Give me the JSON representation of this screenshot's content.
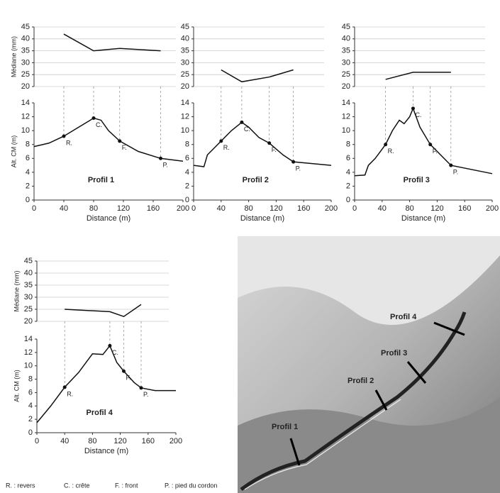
{
  "chart_data": [
    {
      "type": "line",
      "ylabel": "Médiane (mm)",
      "xlim": [
        0,
        200
      ],
      "ylim": [
        20,
        45
      ],
      "yticks": [
        20,
        25,
        30,
        35,
        40,
        45
      ],
      "grid": true,
      "color": "#111",
      "x": [
        40,
        80,
        115,
        170
      ],
      "values": [
        42,
        35,
        36,
        35
      ]
    },
    {
      "type": "line",
      "title": "Profil 1",
      "ylabel": "Alt. CM (m)",
      "xlabel": "Distance (m)",
      "xlim": [
        0,
        200
      ],
      "xticks": [
        0,
        40,
        80,
        120,
        160,
        200
      ],
      "ylim": [
        0,
        14
      ],
      "yticks": [
        0,
        2,
        4,
        6,
        8,
        10,
        12,
        14
      ],
      "color": "#111",
      "x": [
        0,
        20,
        40,
        60,
        80,
        90,
        100,
        115,
        140,
        170,
        200
      ],
      "values": [
        7.7,
        8.2,
        9.2,
        10.5,
        11.8,
        11.5,
        10,
        8.5,
        7,
        6,
        5.6
      ],
      "points": {
        "labels": [
          "R.",
          "C.",
          "F.",
          "P."
        ],
        "x": [
          40,
          80,
          115,
          170
        ],
        "values": [
          9.2,
          11.8,
          8.5,
          6
        ]
      }
    },
    {
      "type": "line",
      "xlim": [
        0,
        200
      ],
      "ylim": [
        20,
        45
      ],
      "yticks": [
        20,
        25,
        30,
        35,
        40,
        45
      ],
      "grid": true,
      "color": "#111",
      "x": [
        40,
        70,
        110,
        145
      ],
      "values": [
        27,
        22,
        24,
        27
      ]
    },
    {
      "type": "line",
      "title": "Profil 2",
      "xlabel": "Distance (m)",
      "xlim": [
        0,
        200
      ],
      "xticks": [
        0,
        40,
        80,
        120,
        160,
        200
      ],
      "ylim": [
        0,
        14
      ],
      "yticks": [
        0,
        2,
        4,
        6,
        8,
        10,
        12,
        14
      ],
      "color": "#111",
      "x": [
        0,
        15,
        20,
        30,
        40,
        55,
        70,
        80,
        95,
        110,
        130,
        145,
        200
      ],
      "values": [
        5,
        4.8,
        6.5,
        7.5,
        8.5,
        10,
        11.2,
        10.5,
        9,
        8.2,
        6.5,
        5.5,
        5
      ],
      "points": {
        "labels": [
          "R.",
          "C.",
          "F.",
          "P."
        ],
        "x": [
          40,
          70,
          110,
          145
        ],
        "values": [
          8.5,
          11.2,
          8.2,
          5.5
        ]
      }
    },
    {
      "type": "line",
      "xlim": [
        0,
        200
      ],
      "ylim": [
        20,
        45
      ],
      "yticks": [
        20,
        25,
        30,
        35,
        40,
        45
      ],
      "grid": true,
      "color": "#111",
      "x": [
        45,
        85,
        110,
        140
      ],
      "values": [
        23,
        26,
        26,
        26
      ]
    },
    {
      "type": "line",
      "title": "Profil 3",
      "xlabel": "Distance (m)",
      "xlim": [
        0,
        200
      ],
      "xticks": [
        0,
        40,
        80,
        120,
        160,
        200
      ],
      "ylim": [
        0,
        14
      ],
      "yticks": [
        0,
        2,
        4,
        6,
        8,
        10,
        12,
        14
      ],
      "color": "#111",
      "x": [
        0,
        15,
        20,
        30,
        45,
        55,
        65,
        72,
        80,
        85,
        95,
        110,
        140,
        200
      ],
      "values": [
        3.5,
        3.6,
        5,
        6,
        8,
        10,
        11.5,
        11,
        12,
        13.2,
        10.5,
        8,
        5,
        3.8
      ],
      "points": {
        "labels": [
          "R.",
          "C.",
          "F.",
          "P."
        ],
        "x": [
          45,
          85,
          110,
          140
        ],
        "values": [
          8,
          13.2,
          8,
          5
        ]
      }
    },
    {
      "type": "line",
      "ylabel": "Médiane (mm)",
      "xlim": [
        0,
        200
      ],
      "ylim": [
        20,
        45
      ],
      "yticks": [
        20,
        25,
        30,
        35,
        40,
        45
      ],
      "grid": true,
      "color": "#111",
      "x": [
        40,
        105,
        125,
        150
      ],
      "values": [
        25,
        24,
        22,
        27
      ]
    },
    {
      "type": "line",
      "title": "Profil 4",
      "ylabel": "Alt. CM (m)",
      "xlabel": "Distance (m)",
      "xlim": [
        0,
        200
      ],
      "xticks": [
        0,
        40,
        80,
        120,
        160,
        200
      ],
      "ylim": [
        0,
        14
      ],
      "yticks": [
        0,
        2,
        4,
        6,
        8,
        10,
        12,
        14
      ],
      "color": "#111",
      "x": [
        0,
        20,
        40,
        60,
        80,
        95,
        105,
        115,
        125,
        140,
        150,
        170,
        200
      ],
      "values": [
        1.5,
        4,
        6.8,
        9,
        11.8,
        11.7,
        13,
        10.5,
        9.2,
        7.5,
        6.7,
        6.3,
        6.3
      ],
      "points": {
        "labels": [
          "R.",
          "C.",
          "F.",
          "P."
        ],
        "x": [
          40,
          105,
          125,
          150
        ],
        "values": [
          6.8,
          13,
          9.2,
          6.7
        ]
      }
    }
  ],
  "map": {
    "labels": [
      "Profil 1",
      "Profil 2",
      "Profil 3",
      "Profil 4"
    ]
  },
  "legend": [
    "R. : revers",
    "C. : crête",
    "F. : front",
    "P. : pied du cordon"
  ]
}
